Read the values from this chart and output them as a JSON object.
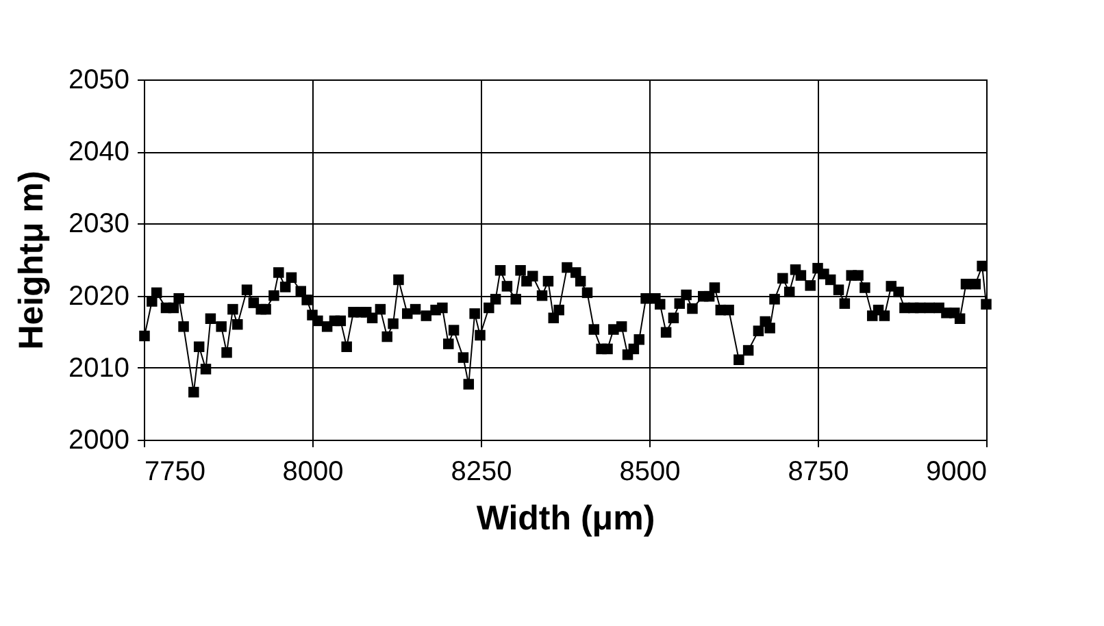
{
  "chart_data": {
    "type": "line",
    "xlabel": "Width (μm)",
    "ylabel": "Heightμ m)",
    "xlim": [
      7750,
      9000
    ],
    "xticks": [
      7750,
      8000,
      8250,
      8500,
      8750,
      9000
    ],
    "ylim": [
      2000,
      2050
    ],
    "yticks": [
      2000,
      2010,
      2020,
      2030,
      2040,
      2050
    ],
    "grid": true,
    "marker": "square",
    "line_style": "solid",
    "legend": false,
    "x": [
      7751,
      7762,
      7769,
      7783,
      7794,
      7802,
      7809,
      7824,
      7832,
      7842,
      7849,
      7865,
      7873,
      7882,
      7889,
      7903,
      7913,
      7924,
      7931,
      7943,
      7950,
      7960,
      7969,
      7983,
      7992,
      8000,
      8008,
      8022,
      8033,
      8042,
      8051,
      8061,
      8072,
      8080,
      8089,
      8101,
      8111,
      8120,
      8128,
      8141,
      8153,
      8169,
      8183,
      8193,
      8202,
      8210,
      8224,
      8232,
      8241,
      8249,
      8262,
      8272,
      8279,
      8289,
      8302,
      8309,
      8318,
      8327,
      8341,
      8350,
      8358,
      8366,
      8378,
      8391,
      8398,
      8408,
      8418,
      8429,
      8438,
      8447,
      8459,
      8468,
      8477,
      8485,
      8495,
      8509,
      8516,
      8525,
      8536,
      8545,
      8555,
      8564,
      8580,
      8589,
      8597,
      8606,
      8618,
      8633,
      8647,
      8662,
      8672,
      8679,
      8686,
      8698,
      8708,
      8717,
      8725,
      8739,
      8750,
      8759,
      8769,
      8781,
      8790,
      8800,
      8810,
      8820,
      8831,
      8840,
      8849,
      8859,
      8870,
      8879,
      8892,
      8902,
      8916,
      8930,
      8941,
      8953,
      8961,
      8970,
      8984,
      8994,
      9000
    ],
    "series": [
      {
        "color": "#000000",
        "values": [
          2014.4,
          2019.2,
          2020.4,
          2018.3,
          2018.3,
          2019.6,
          2015.7,
          2006.6,
          2012.9,
          2009.8,
          2016.8,
          2015.7,
          2012.1,
          2018.1,
          2016.0,
          2020.8,
          2019.0,
          2018.1,
          2018.1,
          2020.0,
          2023.2,
          2021.2,
          2022.5,
          2020.6,
          2019.4,
          2017.3,
          2016.5,
          2015.7,
          2016.5,
          2016.5,
          2012.9,
          2017.7,
          2017.7,
          2017.7,
          2016.9,
          2018.1,
          2014.3,
          2016.1,
          2022.2,
          2017.5,
          2018.1,
          2017.2,
          2018.0,
          2018.3,
          2013.3,
          2015.2,
          2011.4,
          2007.7,
          2017.5,
          2014.5,
          2018.3,
          2019.5,
          2023.5,
          2021.3,
          2019.5,
          2023.5,
          2022.0,
          2022.7,
          2020.0,
          2022.0,
          2016.9,
          2018.0,
          2023.9,
          2023.2,
          2022.0,
          2020.4,
          2015.3,
          2012.6,
          2012.6,
          2015.3,
          2015.7,
          2011.8,
          2012.6,
          2013.9,
          2019.6,
          2019.6,
          2018.8,
          2014.9,
          2016.9,
          2018.9,
          2020.1,
          2018.2,
          2019.9,
          2019.9,
          2021.1,
          2018.0,
          2018.0,
          2011.1,
          2012.4,
          2015.1,
          2016.4,
          2015.5,
          2019.5,
          2022.4,
          2020.5,
          2023.6,
          2022.8,
          2021.4,
          2023.8,
          2023.0,
          2022.2,
          2020.8,
          2018.9,
          2022.8,
          2022.8,
          2021.1,
          2017.2,
          2018.0,
          2017.2,
          2021.3,
          2020.5,
          2018.3,
          2018.3,
          2018.3,
          2018.3,
          2018.3,
          2017.6,
          2017.6,
          2016.8,
          2021.6,
          2021.6,
          2024.1,
          2018.8
        ]
      }
    ]
  }
}
